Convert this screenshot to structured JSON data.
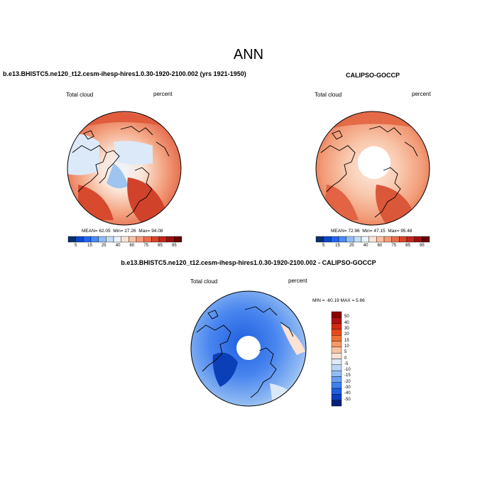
{
  "title": "ANN",
  "case_panel": {
    "title": "b.e13.BHISTC5.ne120_t12.cesm-ihesp-hires1.0.30-1920-2100.002 (yrs 1921-1950)",
    "var_label": "Total cloud",
    "units": "percent",
    "stats": {
      "mean_label": "MEAN=",
      "mean": "62.05",
      "min_label": "Min=",
      "min": "27.26",
      "max_label": "Max=",
      "max": "94.08"
    }
  },
  "obs_panel": {
    "title": "CALIPSO-GOCCP",
    "var_label": "Total cloud",
    "units": "percent",
    "stats": {
      "mean_label": "MEAN=",
      "mean": "72.96",
      "min_label": "Min=",
      "min": "47.15",
      "max_label": "Max=",
      "max": "95.48"
    }
  },
  "diff_panel": {
    "title": "b.e13.BHISTC5.ne120_t12.cesm-ihesp-hires1.0.30-1920-2100.002 - CALIPSO-GOCCP",
    "var_label": "Total cloud",
    "units": "percent",
    "minmax": "MIN = -60.19  MAX =   5.86"
  },
  "chart_data": {
    "type": "heatmap",
    "projection": "north polar stereographic",
    "value_colorbar": {
      "orientation": "horizontal",
      "labels": [
        "5",
        "15",
        "25",
        "40",
        "60",
        "75",
        "85",
        "95"
      ],
      "colors": [
        "#08306b",
        "#0d47c9",
        "#2166f0",
        "#4a8cf5",
        "#8fbdf5",
        "#c6dcf5",
        "#eaf2fb",
        "#fbe3d4",
        "#f8c0a3",
        "#f39a77",
        "#ea6d4c",
        "#d9442a",
        "#c0281b",
        "#9b1010",
        "#6b0000"
      ]
    },
    "diff_colorbar": {
      "orientation": "vertical",
      "labels": [
        "50",
        "40",
        "30",
        "20",
        "15",
        "10",
        "5",
        "0",
        "-5",
        "-10",
        "-15",
        "-20",
        "-30",
        "-40",
        "-50"
      ],
      "colors": [
        "#8b0000",
        "#b01010",
        "#d32a12",
        "#e8481a",
        "#f07038",
        "#f59a66",
        "#f8c3a2",
        "#fbe2d3",
        "#dbe9f8",
        "#bcd6f5",
        "#93bdf2",
        "#6a9ff0",
        "#3f7fee",
        "#1e5fe0",
        "#0a3fbf",
        "#04227a"
      ]
    }
  }
}
